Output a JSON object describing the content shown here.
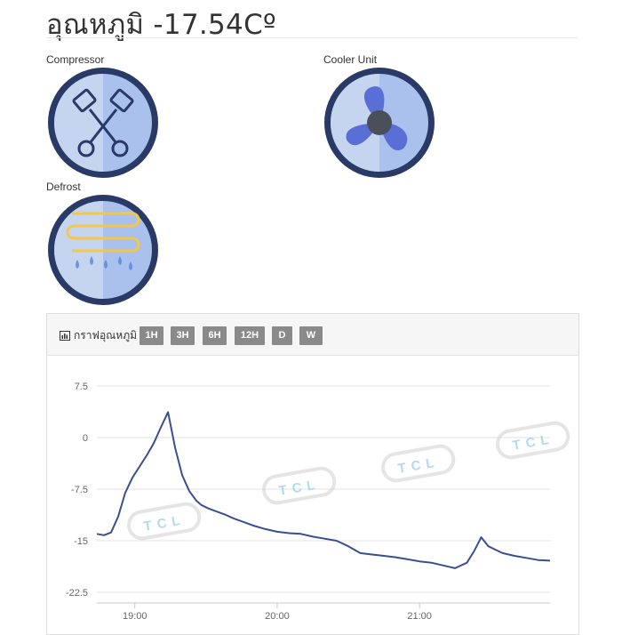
{
  "header": {
    "title": "อุณหภูมิ -17.54Cº"
  },
  "devices": [
    {
      "label": "Compressor",
      "icon": "compressor-pistons-icon"
    },
    {
      "label": "Cooler Unit",
      "icon": "fan-icon"
    },
    {
      "label": "Defrost",
      "icon": "defrost-heater-icon"
    }
  ],
  "graph": {
    "title": "กราฟอุณหภูมิ",
    "icon": "bar-chart-icon",
    "ranges": [
      "1H",
      "3H",
      "6H",
      "12H",
      "D",
      "W"
    ]
  },
  "watermark": "TCL",
  "colors": {
    "line": "#3a4f8f",
    "button": "#8a8a8a",
    "icon_ring": "#2a3a66",
    "icon_fill": "#a9c1ec"
  },
  "chart_data": {
    "type": "line",
    "title": "",
    "xlabel": "",
    "ylabel": "",
    "xticks": [
      "19:00",
      "20:00",
      "21:00"
    ],
    "yticks": [
      7.5,
      0,
      -7.5,
      -15,
      -22.5
    ],
    "ylim": [
      -22.5,
      7.5
    ],
    "xlim_minutes_after_1900": [
      -16,
      175
    ],
    "grid": true,
    "series": [
      {
        "values_x_minutes_after_1900": [
          -16,
          -13,
          -10,
          -7,
          -4,
          -1,
          2,
          5,
          8,
          11,
          14,
          17,
          20,
          23,
          26,
          28,
          31,
          34,
          38,
          42,
          46,
          50,
          55,
          60,
          65,
          70,
          75,
          80,
          85,
          90,
          95,
          100,
          105,
          110,
          115,
          120,
          125,
          130,
          135,
          140,
          143,
          146,
          149,
          152,
          155,
          160,
          165,
          170,
          175
        ],
        "values_y": [
          -14.0,
          -14.2,
          -13.8,
          -11.5,
          -8.0,
          -5.8,
          -4.2,
          -2.6,
          -0.8,
          1.5,
          3.7,
          -1.5,
          -5.5,
          -7.8,
          -9.2,
          -9.8,
          -10.3,
          -10.7,
          -11.2,
          -11.8,
          -12.3,
          -12.8,
          -13.3,
          -13.7,
          -13.9,
          -14.0,
          -14.4,
          -14.7,
          -15.0,
          -15.8,
          -16.8,
          -17.0,
          -17.2,
          -17.4,
          -17.7,
          -18.0,
          -18.2,
          -18.6,
          -19.0,
          -18.2,
          -16.5,
          -14.5,
          -15.8,
          -16.3,
          -16.8,
          -17.2,
          -17.5,
          -17.8,
          -17.9
        ]
      }
    ]
  }
}
